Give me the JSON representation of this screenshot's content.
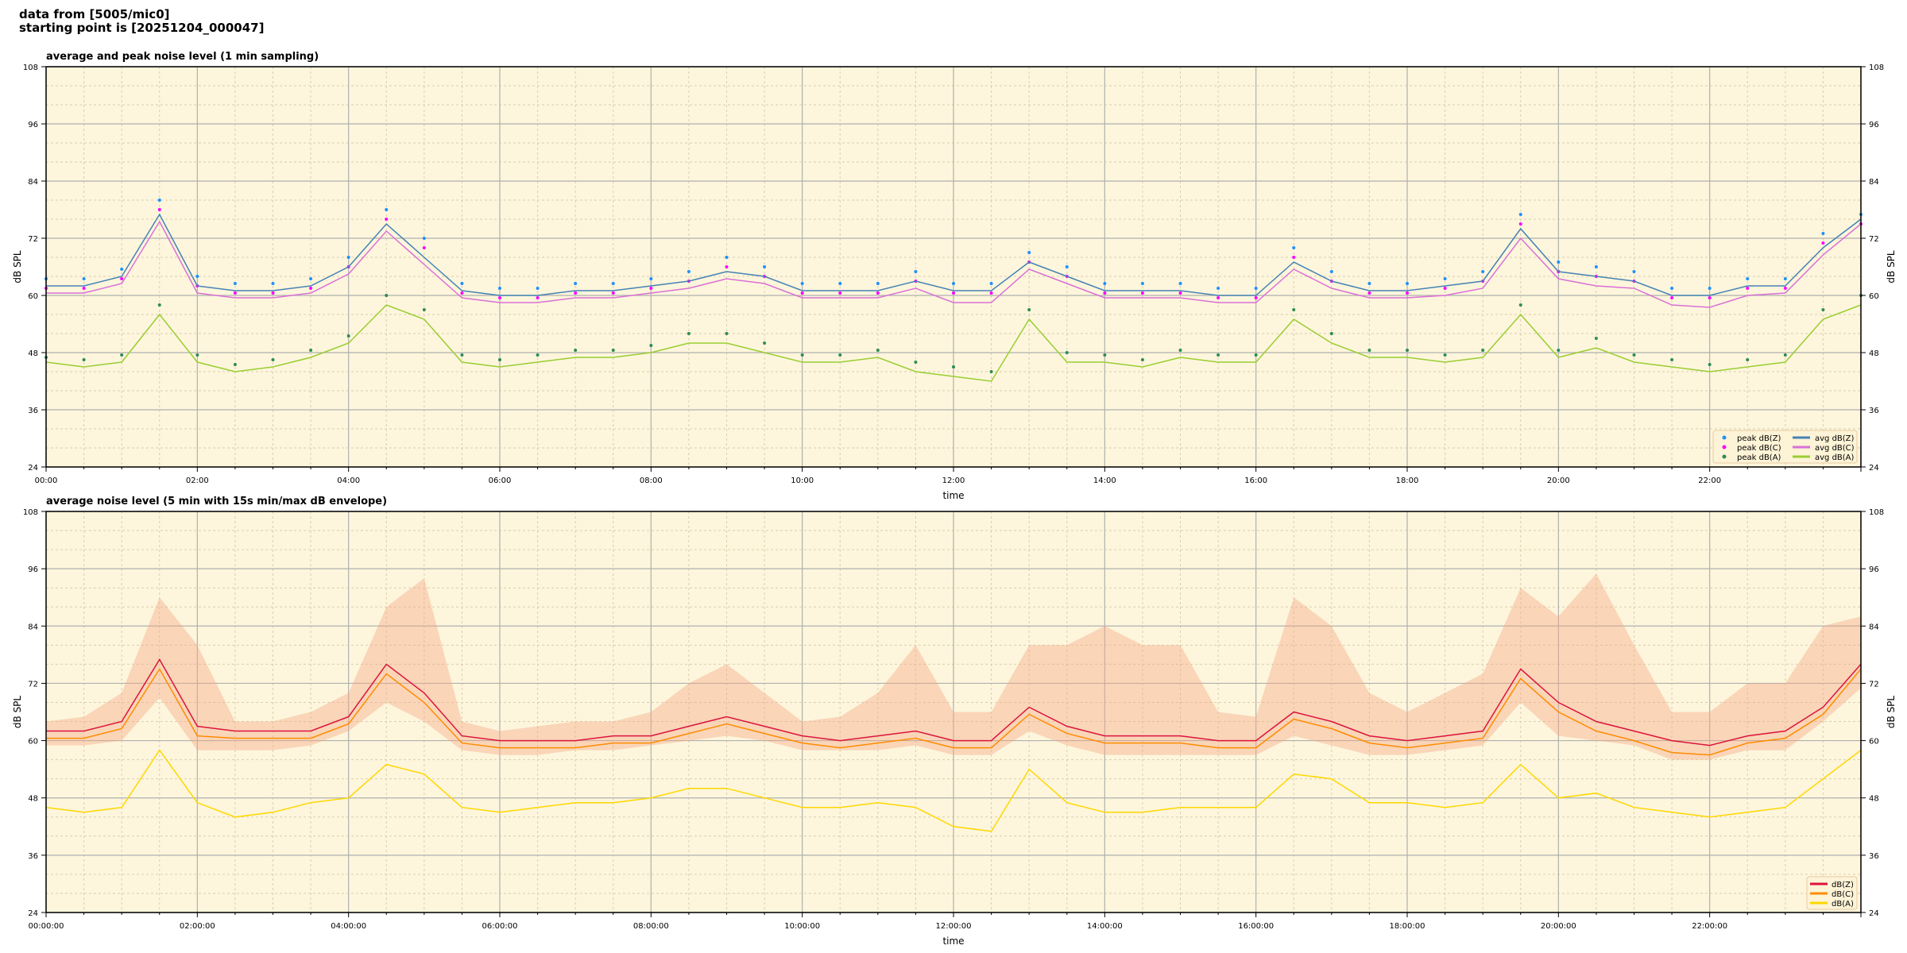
{
  "header": {
    "line1": "data from [5005/mic0]",
    "line2": "starting point is [20251204_000047]"
  },
  "chart_data": [
    {
      "type": "line",
      "title": "average and peak noise level (1 min sampling)",
      "xlabel": "time",
      "ylabel": "dB SPL",
      "ylabel_right": "dB SPL",
      "xlim_hours": [
        0,
        24
      ],
      "ylim": [
        24,
        108
      ],
      "yticks": [
        24,
        36,
        48,
        60,
        72,
        84,
        96,
        108
      ],
      "xtick_labels": [
        "00:00",
        "02:00",
        "04:00",
        "06:00",
        "08:00",
        "10:00",
        "12:00",
        "14:00",
        "16:00",
        "18:00",
        "20:00",
        "22:00"
      ],
      "grid": true,
      "background": "#fdf6dc",
      "legend_placement": "bottom-right",
      "x_hours": [
        0,
        0.5,
        1,
        1.5,
        2,
        2.5,
        3,
        3.5,
        4,
        4.5,
        5,
        5.5,
        6,
        6.5,
        7,
        7.5,
        8,
        8.5,
        9,
        9.5,
        10,
        10.5,
        11,
        11.5,
        12,
        12.5,
        13,
        13.5,
        14,
        14.5,
        15,
        15.5,
        16,
        16.5,
        17,
        17.5,
        18,
        18.5,
        19,
        19.5,
        20,
        20.5,
        21,
        21.5,
        22,
        22.5,
        23,
        23.5,
        24
      ],
      "series": [
        {
          "name": "peak dB(Z)",
          "kind": "points",
          "color": "#1e90ff",
          "values": [
            63.5,
            63.5,
            65.5,
            80,
            64,
            62.5,
            62.5,
            63.5,
            68,
            78,
            72,
            62.5,
            61.5,
            61.5,
            62.5,
            62.5,
            63.5,
            65,
            68,
            66,
            62.5,
            62.5,
            62.5,
            65,
            62.5,
            62.5,
            69,
            66,
            62.5,
            62.5,
            62.5,
            61.5,
            61.5,
            70,
            65,
            62.5,
            62.5,
            63.5,
            65,
            77,
            67,
            66,
            65,
            61.5,
            61.5,
            63.5,
            63.5,
            73,
            77
          ]
        },
        {
          "name": "peak dB(C)",
          "kind": "points",
          "color": "#ff00ff",
          "values": [
            61.5,
            61.5,
            63.5,
            78,
            62,
            60.5,
            60.5,
            61.5,
            66,
            76,
            70,
            60.5,
            59.5,
            59.5,
            60.5,
            60.5,
            61.5,
            63,
            66,
            64,
            60.5,
            60.5,
            60.5,
            63,
            60.5,
            60.5,
            67,
            64,
            60.5,
            60.5,
            60.5,
            59.5,
            59.5,
            68,
            63,
            60.5,
            60.5,
            61.5,
            63,
            75,
            65,
            64,
            63,
            59.5,
            59.5,
            61.5,
            61.5,
            71,
            75
          ]
        },
        {
          "name": "peak dB(A)",
          "kind": "points",
          "color": "#2e8b57",
          "values": [
            47,
            46.5,
            47.5,
            58,
            47.5,
            45.5,
            46.5,
            48.5,
            51.5,
            60,
            57,
            47.5,
            46.5,
            47.5,
            48.5,
            48.5,
            49.5,
            52,
            52,
            50,
            47.5,
            47.5,
            48.5,
            46,
            45,
            44,
            57,
            48,
            47.5,
            46.5,
            48.5,
            47.5,
            47.5,
            57,
            52,
            48.5,
            48.5,
            47.5,
            48.5,
            58,
            48.5,
            51,
            47.5,
            46.5,
            45.5,
            46.5,
            47.5,
            57,
            60
          ]
        },
        {
          "name": "avg dB(Z)",
          "kind": "line",
          "color": "#4682b4",
          "values": [
            62,
            62,
            64,
            77,
            62,
            61,
            61,
            62,
            66,
            75,
            68,
            61,
            60,
            60,
            61,
            61,
            62,
            63,
            65,
            64,
            61,
            61,
            61,
            63,
            61,
            61,
            67,
            64,
            61,
            61,
            61,
            60,
            60,
            67,
            63,
            61,
            61,
            62,
            63,
            74,
            65,
            64,
            63,
            60,
            60,
            62,
            62,
            70,
            76
          ]
        },
        {
          "name": "avg dB(C)",
          "kind": "line",
          "color": "#da70d6",
          "values": [
            60.5,
            60.5,
            62.5,
            75.5,
            60.5,
            59.5,
            59.5,
            60.5,
            64.5,
            73.5,
            66.5,
            59.5,
            58.5,
            58.5,
            59.5,
            59.5,
            60.5,
            61.5,
            63.5,
            62.5,
            59.5,
            59.5,
            59.5,
            61.5,
            58.5,
            58.5,
            65.5,
            62.5,
            59.5,
            59.5,
            59.5,
            58.5,
            58.5,
            65.5,
            61.5,
            59.5,
            59.5,
            60,
            61.5,
            72,
            63.5,
            62,
            61.5,
            58,
            57.5,
            60,
            60.5,
            68.5,
            75
          ]
        },
        {
          "name": "avg dB(A)",
          "kind": "line",
          "color": "#9acd32",
          "values": [
            46,
            45,
            46,
            56,
            46,
            44,
            45,
            47,
            50,
            58,
            55,
            46,
            45,
            46,
            47,
            47,
            48,
            50,
            50,
            48,
            46,
            46,
            47,
            44,
            43,
            42,
            55,
            46,
            46,
            45,
            47,
            46,
            46,
            55,
            50,
            47,
            47,
            46,
            47,
            56,
            47,
            49,
            46,
            45,
            44,
            45,
            46,
            55,
            58
          ]
        }
      ]
    },
    {
      "type": "line",
      "title": "average noise level (5 min with 15s min/max dB envelope)",
      "xlabel": "time",
      "ylabel": "dB SPL",
      "ylabel_right": "dB SPL",
      "xlim_hours": [
        0,
        24
      ],
      "ylim": [
        24,
        108
      ],
      "yticks": [
        24,
        36,
        48,
        60,
        72,
        84,
        96,
        108
      ],
      "xtick_labels": [
        "00:00:00",
        "02:00:00",
        "04:00:00",
        "06:00:00",
        "08:00:00",
        "10:00:00",
        "12:00:00",
        "14:00:00",
        "16:00:00",
        "18:00:00",
        "20:00:00",
        "22:00:00"
      ],
      "grid": true,
      "background": "#fdf6dc",
      "legend_placement": "bottom-right",
      "envelope_color": "#f4a582",
      "x_hours": [
        0,
        0.5,
        1,
        1.5,
        2,
        2.5,
        3,
        3.5,
        4,
        4.5,
        5,
        5.5,
        6,
        6.5,
        7,
        7.5,
        8,
        8.5,
        9,
        9.5,
        10,
        10.5,
        11,
        11.5,
        12,
        12.5,
        13,
        13.5,
        14,
        14.5,
        15,
        15.5,
        16,
        16.5,
        17,
        17.5,
        18,
        18.5,
        19,
        19.5,
        20,
        20.5,
        21,
        21.5,
        22,
        22.5,
        23,
        23.5,
        24
      ],
      "envelope_min": [
        59,
        59,
        60,
        69,
        58,
        58,
        58,
        59,
        62,
        68,
        64,
        58,
        57,
        57,
        58,
        58,
        59,
        60,
        61,
        60,
        58,
        58,
        58,
        59,
        57,
        57,
        62,
        59,
        57,
        57,
        57,
        57,
        57,
        61,
        59,
        57,
        57,
        58,
        59,
        68,
        61,
        60,
        59,
        56,
        56,
        58,
        58,
        64,
        71
      ],
      "envelope_max": [
        64,
        65,
        70,
        90,
        80,
        64,
        64,
        66,
        70,
        88,
        94,
        64,
        62,
        63,
        64,
        64,
        66,
        72,
        76,
        70,
        64,
        65,
        70,
        80,
        66,
        66,
        80,
        80,
        84,
        80,
        80,
        66,
        65,
        90,
        84,
        70,
        66,
        70,
        74,
        92,
        86,
        95,
        80,
        66,
        66,
        72,
        72,
        84,
        86
      ],
      "series": [
        {
          "name": "dB(Z)",
          "color": "#dc143c",
          "values": [
            62,
            62,
            64,
            77,
            63,
            62,
            62,
            62,
            65,
            76,
            70,
            61,
            60,
            60,
            60,
            61,
            61,
            63,
            65,
            63,
            61,
            60,
            61,
            62,
            60,
            60,
            67,
            63,
            61,
            61,
            61,
            60,
            60,
            66,
            64,
            61,
            60,
            61,
            62,
            75,
            68,
            64,
            62,
            60,
            59,
            61,
            62,
            67,
            76
          ]
        },
        {
          "name": "dB(C)",
          "color": "#ff8c00",
          "values": [
            60.5,
            60.5,
            62.5,
            75,
            61,
            60.5,
            60.5,
            60.5,
            63.5,
            74,
            68,
            59.5,
            58.5,
            58.5,
            58.5,
            59.5,
            59.5,
            61.5,
            63.5,
            61.5,
            59.5,
            58.5,
            59.5,
            60.5,
            58.5,
            58.5,
            65.5,
            61.5,
            59.5,
            59.5,
            59.5,
            58.5,
            58.5,
            64.5,
            62.5,
            59.5,
            58.5,
            59.5,
            60.5,
            73,
            66,
            62,
            60,
            57.5,
            57,
            59.5,
            60.5,
            65.5,
            75
          ]
        },
        {
          "name": "dB(A)",
          "color": "#ffd700",
          "values": [
            46,
            45,
            46,
            58,
            47,
            44,
            45,
            47,
            48,
            55,
            53,
            46,
            45,
            46,
            47,
            47,
            48,
            50,
            50,
            48,
            46,
            46,
            47,
            46,
            42,
            41,
            54,
            47,
            45,
            45,
            46,
            46,
            46,
            53,
            52,
            47,
            47,
            46,
            47,
            55,
            48,
            49,
            46,
            45,
            44,
            45,
            46,
            52,
            58
          ]
        }
      ]
    }
  ]
}
